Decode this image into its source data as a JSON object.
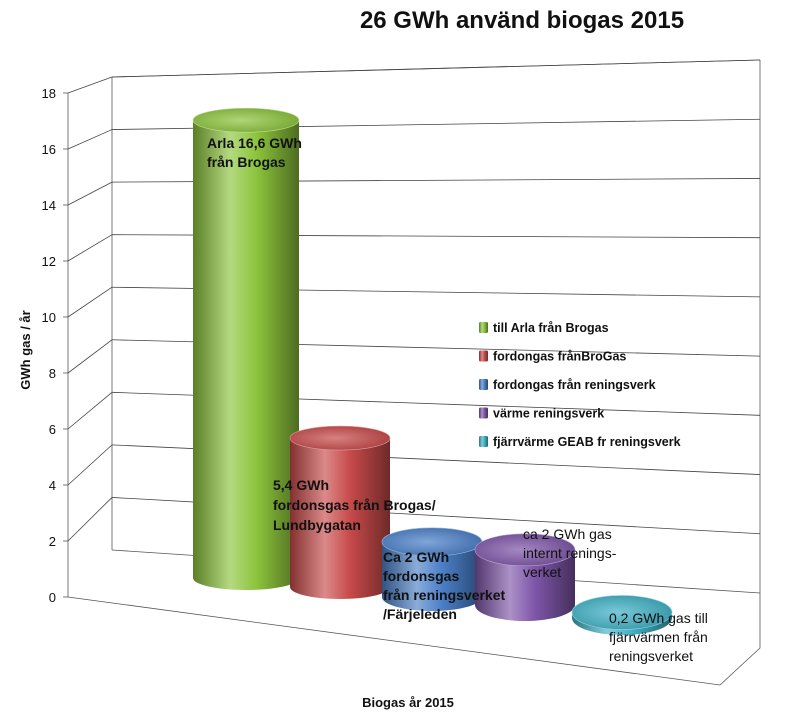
{
  "chart_data": {
    "type": "bar",
    "style": "3d-cylinder",
    "title": "26 GWh använd biogas 2015",
    "xlabel": "Biogas år 2015",
    "ylabel": "GWh gas / år",
    "ylim": [
      0,
      18
    ],
    "yticks": [
      0,
      2,
      4,
      6,
      8,
      10,
      12,
      14,
      16,
      18
    ],
    "grid": true,
    "legend_position": "right",
    "series": [
      {
        "name": "till Arla från Brogas",
        "value": 16.6,
        "color": "#8cc43c",
        "annotation": [
          "Arla 16,6 GWh",
          "från Brogas"
        ],
        "annotation_bold": true
      },
      {
        "name": "fordongas frånBroGas",
        "value": 5.4,
        "color": "#c84a4a",
        "annotation": [
          "5,4 GWh",
          "fordonsgas från Brogas/",
          "Lundbygatan"
        ],
        "annotation_bold": true
      },
      {
        "name": "fordongas från reningsverk",
        "value": 2.0,
        "color": "#4a7fc8",
        "annotation": [
          "Ca 2 GWh",
          "fordonsgas",
          "från reningsverket",
          " /Färjeleden"
        ],
        "annotation_bold": true
      },
      {
        "name": " värme reningsverk",
        "value": 2.0,
        "color": "#7e55a8",
        "annotation": [
          "ca 2 GWh gas",
          " internt renings-",
          "verket"
        ],
        "annotation_bold": false
      },
      {
        "name": "fjärrvärme GEAB fr reningsverk",
        "value": 0.2,
        "color": "#3fb2c6",
        "annotation": [
          "0,2 GWh gas till",
          "fjärrvärmen från",
          "reningsverket"
        ],
        "annotation_bold": false
      }
    ]
  }
}
